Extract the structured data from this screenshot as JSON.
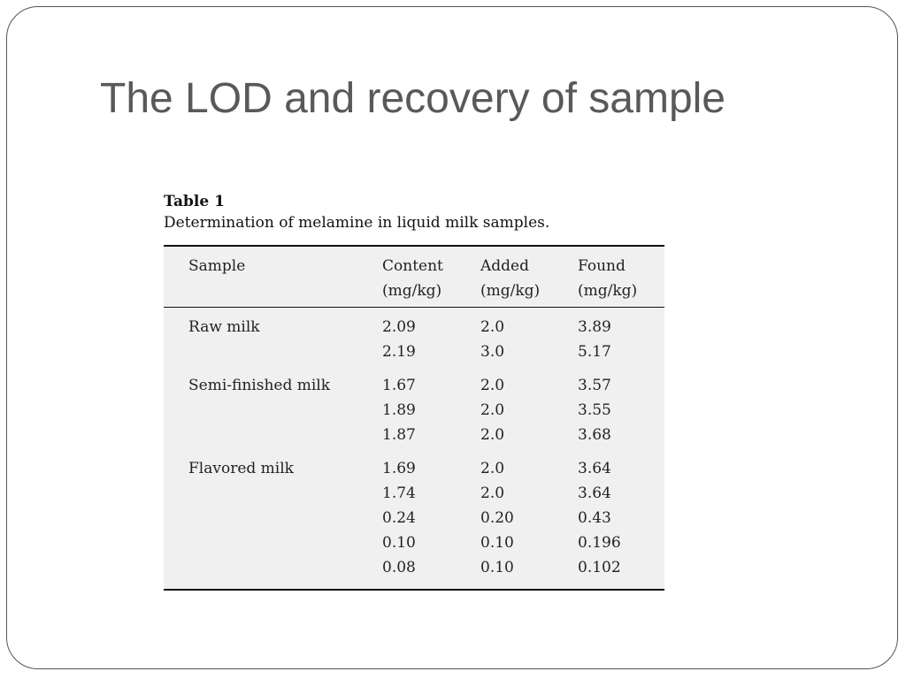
{
  "slide": {
    "title": "The LOD and recovery of sample"
  },
  "table": {
    "label": "Table 1",
    "caption": "Determination of melamine in liquid milk samples.",
    "headers": {
      "sample": "Sample",
      "content": [
        "Content",
        "(mg/kg)"
      ],
      "added": [
        "Added",
        "(mg/kg)"
      ],
      "found": [
        "Found",
        "(mg/kg)"
      ]
    },
    "groups": [
      {
        "sample": "Raw milk",
        "content": [
          "2.09",
          "2.19"
        ],
        "added": [
          "2.0",
          "3.0"
        ],
        "found": [
          "3.89",
          "5.17"
        ]
      },
      {
        "sample": "Semi-finished milk",
        "content": [
          "1.67",
          "1.89",
          "1.87"
        ],
        "added": [
          "2.0",
          "2.0",
          "2.0"
        ],
        "found": [
          "3.57",
          "3.55",
          "3.68"
        ]
      },
      {
        "sample": "Flavored milk",
        "content": [
          "1.69",
          "1.74",
          "0.24",
          "0.10",
          "0.08"
        ],
        "added": [
          "2.0",
          "2.0",
          "0.20",
          "0.10",
          "0.10"
        ],
        "found": [
          "3.64",
          "3.64",
          "0.43",
          "0.196",
          "0.102"
        ]
      }
    ]
  }
}
